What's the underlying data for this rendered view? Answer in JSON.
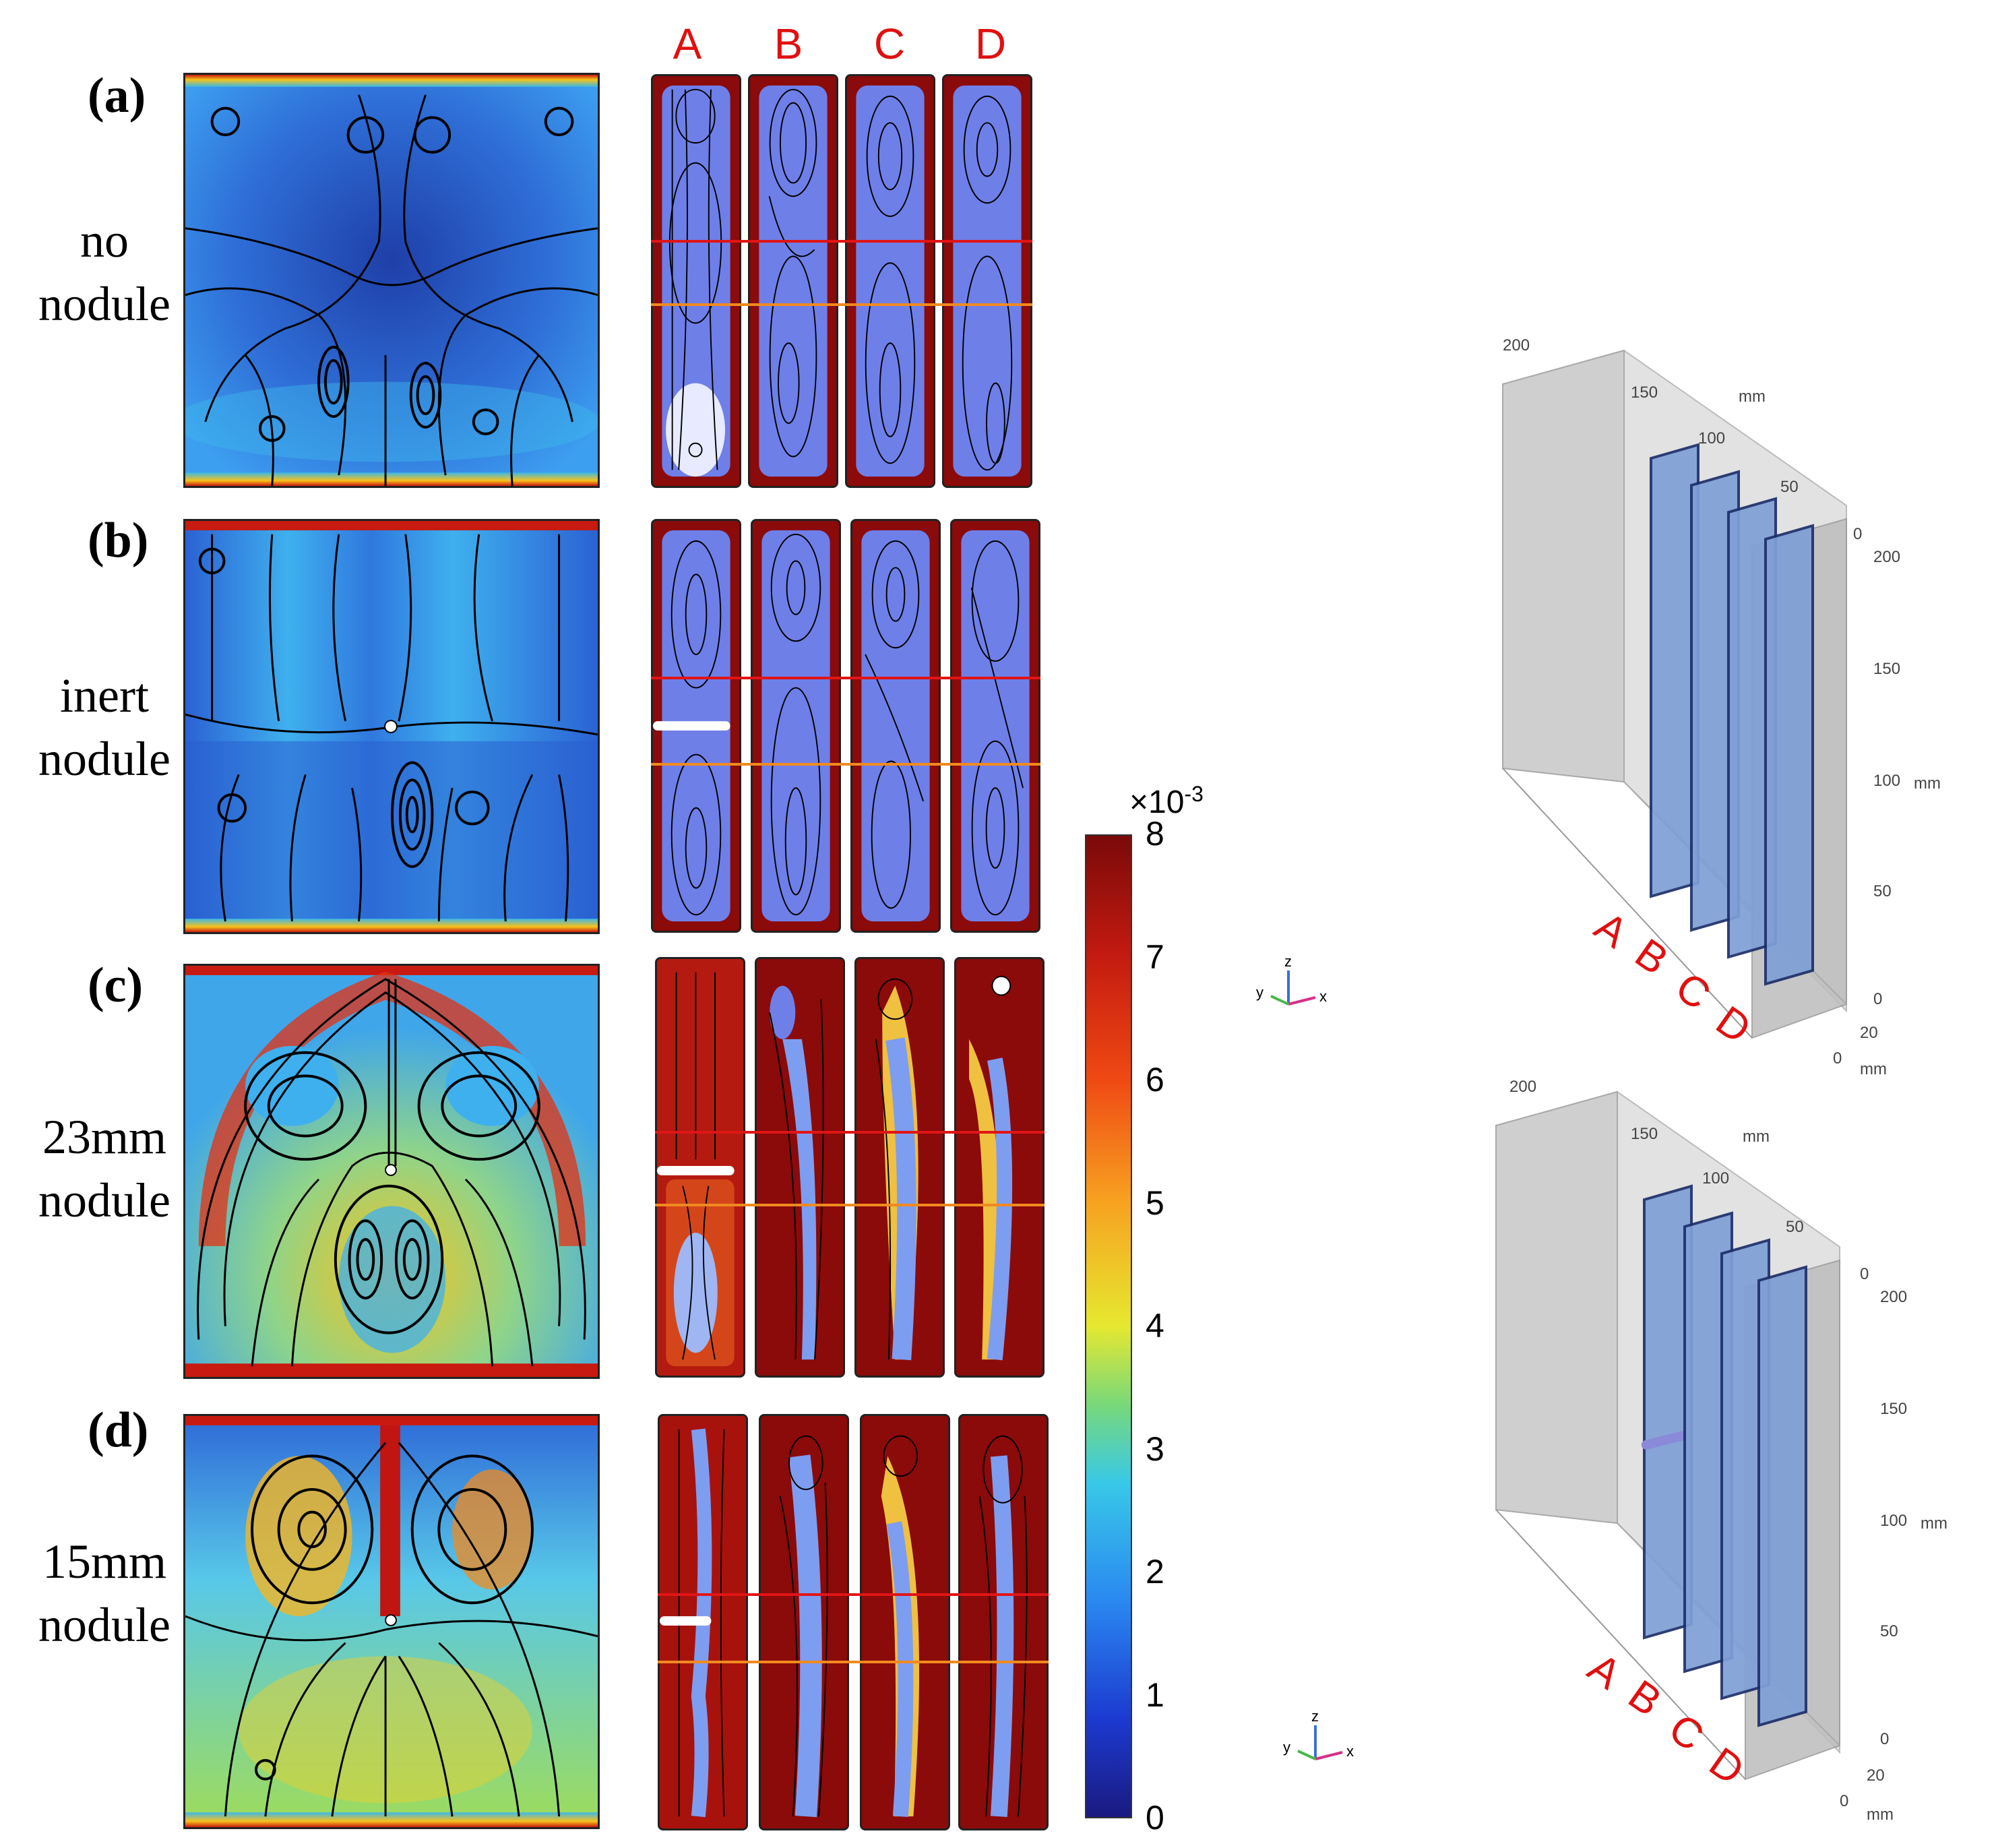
{
  "column_labels": [
    "A",
    "B",
    "C",
    "D"
  ],
  "rows": [
    {
      "id": "(a)",
      "desc": [
        "no",
        "nodule"
      ]
    },
    {
      "id": "(b)",
      "desc": [
        "inert",
        "nodule"
      ]
    },
    {
      "id": "(c)",
      "desc": [
        "23mm",
        "nodule"
      ]
    },
    {
      "id": "(d)",
      "desc": [
        "15mm",
        "nodule"
      ]
    }
  ],
  "colorbar": {
    "multiplier_base": "×10",
    "multiplier_exp": "-3",
    "ticks": [
      "8",
      "7",
      "6",
      "5",
      "4",
      "3",
      "2",
      "1",
      "0"
    ],
    "min": 0,
    "max": 8
  },
  "geometry_views": [
    {
      "top_axis_ticks": [
        "200",
        "150",
        "100",
        "50",
        "0"
      ],
      "top_axis_unit": "mm",
      "z_axis_ticks": [
        "200",
        "150",
        "100",
        "50",
        "0"
      ],
      "z_axis_unit": "mm",
      "depth_ticks": [
        "20",
        "0"
      ],
      "depth_unit": "mm",
      "plate_labels": [
        "A",
        "B",
        "C",
        "D"
      ]
    },
    {
      "top_axis_ticks": [
        "200",
        "150",
        "100",
        "50",
        "0"
      ],
      "top_axis_unit": "mm",
      "z_axis_ticks": [
        "200",
        "150",
        "100",
        "50",
        "0"
      ],
      "z_axis_unit": "mm",
      "depth_ticks": [
        "20",
        "0"
      ],
      "depth_unit": "mm",
      "plate_labels": [
        "A",
        "B",
        "C",
        "D"
      ]
    }
  ],
  "triad_labels": {
    "z": "z",
    "y": "y",
    "x": "x"
  },
  "colors": {
    "label_red": "#e01010",
    "red_line": "#e01515",
    "orange_line": "#f08a20",
    "plate_blue": "#7f9fd6",
    "box_gray": "#d9d9d9"
  }
}
